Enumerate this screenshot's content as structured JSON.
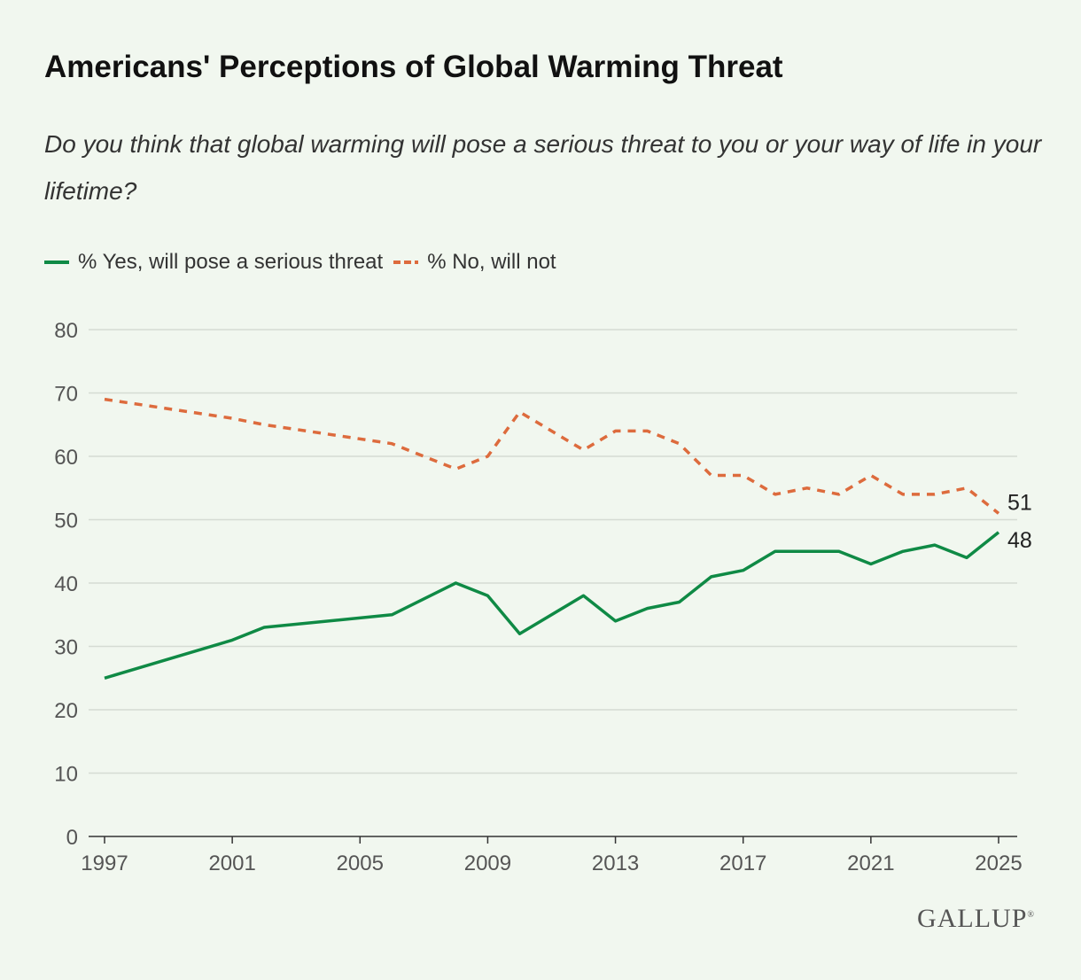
{
  "title": "Americans' Perceptions of Global Warming Threat",
  "subtitle": "Do you think that global warming will pose a serious threat to you or your way of life in your lifetime?",
  "legend": {
    "yes_label": "% Yes, will pose a serious threat",
    "no_label": "% No, will not"
  },
  "logo": "GALLUP",
  "chart_data": {
    "type": "line",
    "title": "Americans' Perceptions of Global Warming Threat",
    "xlabel": "",
    "ylabel": "",
    "xlim": [
      1997,
      2025
    ],
    "ylim": [
      0,
      80
    ],
    "yticks": [
      0,
      10,
      20,
      30,
      40,
      50,
      60,
      70,
      80
    ],
    "xticks": [
      1997,
      2001,
      2005,
      2009,
      2013,
      2017,
      2021,
      2025
    ],
    "grid": true,
    "legend_position": "top-left",
    "series": [
      {
        "name": "% Yes, will pose a serious threat",
        "color": "#0f8a45",
        "style": "solid",
        "points": [
          [
            1997,
            25
          ],
          [
            2001,
            31
          ],
          [
            2002,
            33
          ],
          [
            2006,
            35
          ],
          [
            2008,
            40
          ],
          [
            2009,
            38
          ],
          [
            2010,
            32
          ],
          [
            2012,
            38
          ],
          [
            2013,
            34
          ],
          [
            2014,
            36
          ],
          [
            2015,
            37
          ],
          [
            2016,
            41
          ],
          [
            2017,
            42
          ],
          [
            2018,
            45
          ],
          [
            2019,
            45
          ],
          [
            2020,
            45
          ],
          [
            2021,
            43
          ],
          [
            2022,
            45
          ],
          [
            2023,
            46
          ],
          [
            2024,
            44
          ],
          [
            2025,
            48
          ]
        ],
        "end_label": "48"
      },
      {
        "name": "% No, will not",
        "color": "#dd6b3d",
        "style": "dashed",
        "points": [
          [
            1997,
            69
          ],
          [
            2001,
            66
          ],
          [
            2002,
            65
          ],
          [
            2006,
            62
          ],
          [
            2008,
            58
          ],
          [
            2009,
            60
          ],
          [
            2010,
            67
          ],
          [
            2012,
            61
          ],
          [
            2013,
            64
          ],
          [
            2014,
            64
          ],
          [
            2015,
            62
          ],
          [
            2016,
            57
          ],
          [
            2017,
            57
          ],
          [
            2018,
            54
          ],
          [
            2019,
            55
          ],
          [
            2020,
            54
          ],
          [
            2021,
            57
          ],
          [
            2022,
            54
          ],
          [
            2023,
            54
          ],
          [
            2024,
            55
          ],
          [
            2025,
            51
          ]
        ],
        "end_label": "51"
      }
    ]
  }
}
